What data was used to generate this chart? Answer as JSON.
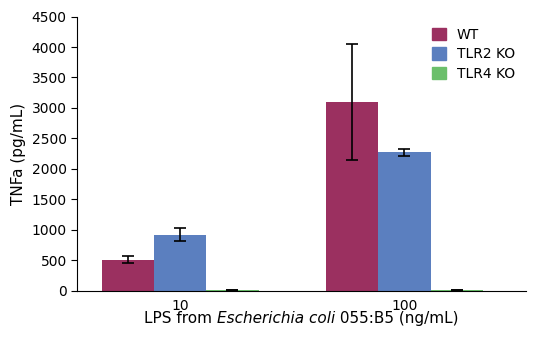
{
  "groups": [
    "10",
    "100"
  ],
  "series": [
    {
      "label": "WT",
      "color": "#9B3060",
      "values": [
        510,
        3100
      ],
      "errors": [
        50,
        950
      ]
    },
    {
      "label": "TLR2 KO",
      "color": "#5B7FBF",
      "values": [
        920,
        2270
      ],
      "errors": [
        100,
        60
      ]
    },
    {
      "label": "TLR4 KO",
      "color": "#6BBF6B",
      "values": [
        5,
        5
      ],
      "errors": [
        0,
        0
      ]
    }
  ],
  "ylabel": "TNFa (pg/mL)",
  "xlabel_part1": "LPS from ",
  "xlabel_italic": "Escherichia coli",
  "xlabel_part2": " 055:B5 (ng/mL)",
  "ylim": [
    0,
    4500
  ],
  "yticks": [
    0,
    500,
    1000,
    1500,
    2000,
    2500,
    3000,
    3500,
    4000,
    4500
  ],
  "bar_width": 0.28,
  "group_centers": [
    1.0,
    2.2
  ],
  "xlim": [
    0.45,
    2.85
  ],
  "capsize": 4,
  "tick_fontsize": 10,
  "label_fontsize": 11,
  "legend_fontsize": 10
}
